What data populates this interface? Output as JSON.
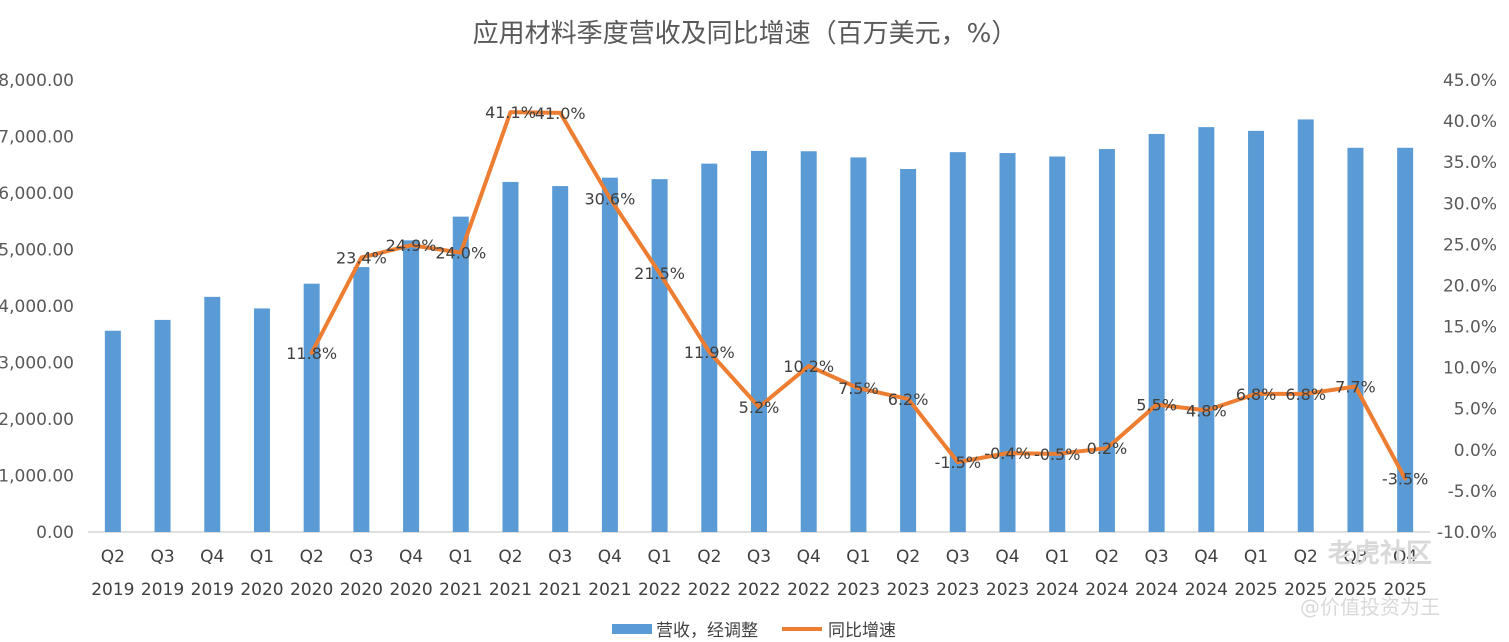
{
  "chart_data": {
    "type": "bar+line",
    "title": "应用材料季度营收及同比增速（百万美元，%）",
    "categories": [
      [
        "Q2",
        "2019"
      ],
      [
        "Q3",
        "2019"
      ],
      [
        "Q4",
        "2019"
      ],
      [
        "Q1",
        "2020"
      ],
      [
        "Q2",
        "2020"
      ],
      [
        "Q3",
        "2020"
      ],
      [
        "Q4",
        "2020"
      ],
      [
        "Q1",
        "2021"
      ],
      [
        "Q2",
        "2021"
      ],
      [
        "Q3",
        "2021"
      ],
      [
        "Q4",
        "2021"
      ],
      [
        "Q1",
        "2022"
      ],
      [
        "Q2",
        "2022"
      ],
      [
        "Q3",
        "2022"
      ],
      [
        "Q4",
        "2022"
      ],
      [
        "Q1",
        "2023"
      ],
      [
        "Q2",
        "2023"
      ],
      [
        "Q3",
        "2023"
      ],
      [
        "Q4",
        "2023"
      ],
      [
        "Q1",
        "2024"
      ],
      [
        "Q2",
        "2024"
      ],
      [
        "Q3",
        "2024"
      ],
      [
        "Q4",
        "2024"
      ],
      [
        "Q1",
        "2025"
      ],
      [
        "Q2",
        "2025"
      ],
      [
        "Q3",
        "2025"
      ],
      [
        "Q4",
        "2025"
      ]
    ],
    "series": [
      {
        "name": "营收，经调整",
        "type": "bar",
        "axis": "left",
        "color": "#5b9bd5",
        "values": [
          3562,
          3754,
          4162,
          3957,
          4395,
          4689,
          5162,
          5582,
          6196,
          6123,
          6271,
          6245,
          6520,
          6745,
          6739,
          6630,
          6425,
          6723,
          6707,
          6646,
          6778,
          7045,
          7166,
          7100,
          7302,
          6800,
          6800
        ]
      },
      {
        "name": "同比增速",
        "type": "line",
        "axis": "right",
        "color": "#ed7d31",
        "values": [
          null,
          null,
          null,
          null,
          11.8,
          23.4,
          24.9,
          24.0,
          41.1,
          41.0,
          30.6,
          21.5,
          11.9,
          5.2,
          10.2,
          7.5,
          6.2,
          -1.5,
          -0.4,
          -0.5,
          0.2,
          5.5,
          4.8,
          6.8,
          6.8,
          7.7,
          -3.5
        ],
        "labels": [
          "",
          "",
          "",
          "",
          "11.8%",
          "23.4%",
          "24.9%",
          "24.0%",
          "41.1%",
          "41.0%",
          "30.6%",
          "21.5%",
          "11.9%",
          "5.2%",
          "10.2%",
          "7.5%",
          "6.2%",
          "-1.5%",
          "-0.4%",
          "-0.5%",
          "0.2%",
          "5.5%",
          "4.8%",
          "6.8%",
          "6.8%",
          "7.7%",
          "-3.5%"
        ]
      }
    ],
    "y_left": {
      "min": 0,
      "max": 8000,
      "step": 1000,
      "ticks": [
        "0.00",
        "1,000.00",
        "2,000.00",
        "3,000.00",
        "4,000.00",
        "5,000.00",
        "6,000.00",
        "7,000.00",
        "8,000.00"
      ]
    },
    "y_right": {
      "min": -10,
      "max": 45,
      "step": 5,
      "ticks": [
        "-10.0%",
        "-5.0%",
        "0.0%",
        "5.0%",
        "10.0%",
        "15.0%",
        "20.0%",
        "25.0%",
        "30.0%",
        "35.0%",
        "40.0%",
        "45.0%"
      ]
    },
    "grid": false,
    "legend": {
      "position": "bottom",
      "items": [
        "营收，经调整",
        "同比增速"
      ]
    }
  },
  "watermark": {
    "brand": "老虎社区",
    "handle": "@价值投资为王"
  }
}
